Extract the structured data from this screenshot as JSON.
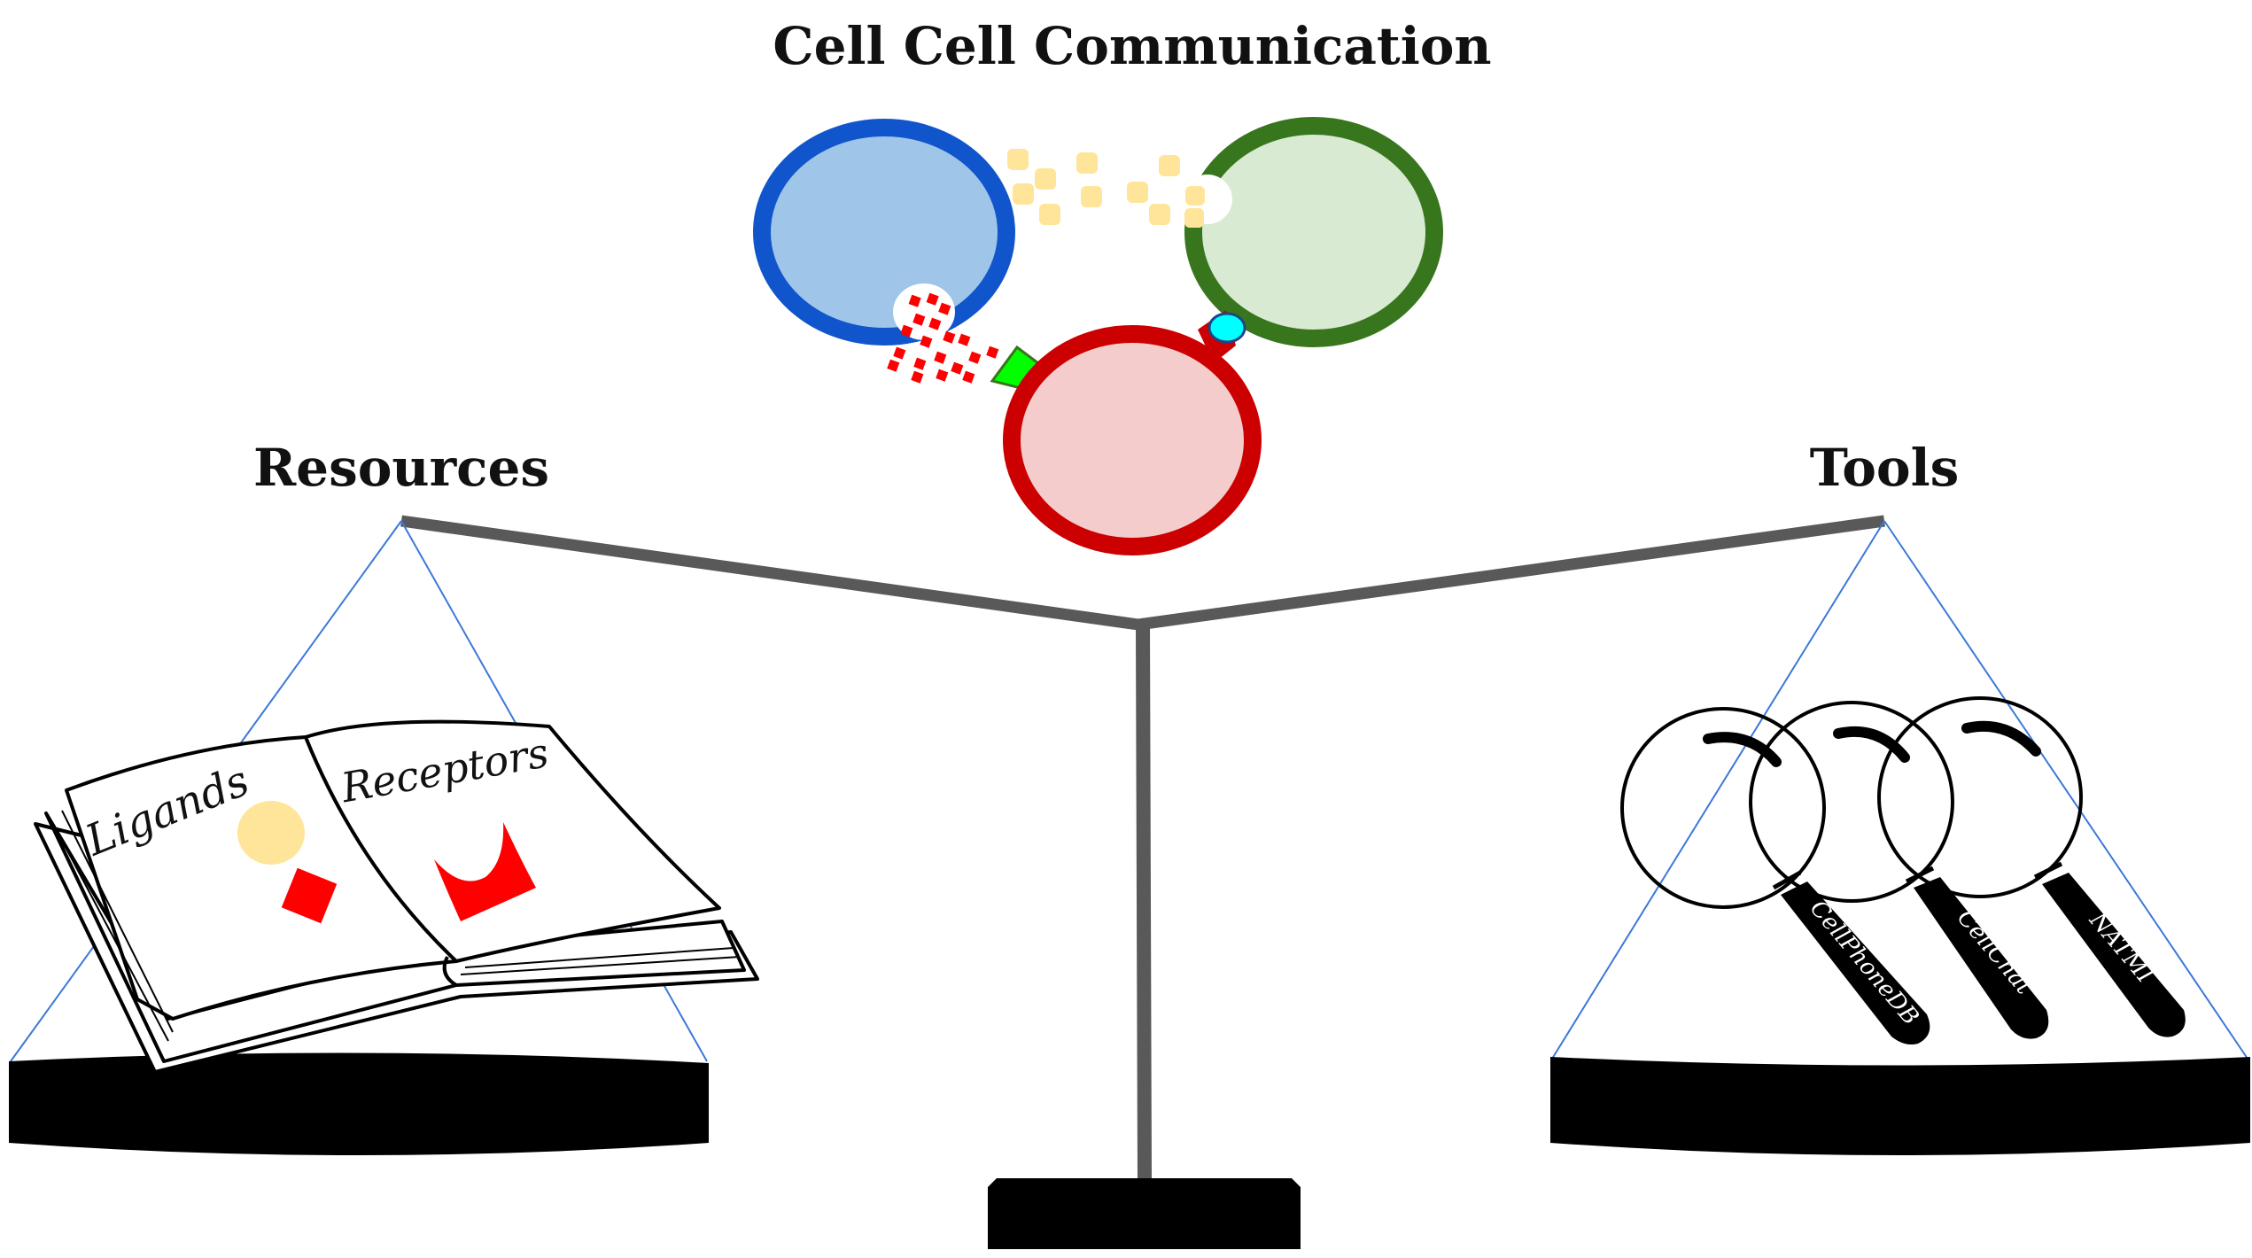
{
  "title": "Cell Cell Communication",
  "left_label": "Resources",
  "right_label": "Tools",
  "book": {
    "left_page": "Ligands",
    "right_page": "Receptors"
  },
  "tools": [
    "CellPhoneDB",
    "CellChat",
    "NATMI"
  ],
  "colors": {
    "cell_blue_border": "#1155cc",
    "cell_blue_fill": "#9fc5e8",
    "cell_green_border": "#38761d",
    "cell_green_fill": "#d9ead3",
    "cell_red_border": "#cc0000",
    "cell_red_fill": "#f4cccc",
    "ligand_yellow": "#ffe599",
    "ligand_red": "#ff0000",
    "receptor_green": "#00ff00",
    "receptor_cyan": "#00ffff",
    "beam": "#595959",
    "pan": "#000000",
    "string": "#3c78d8"
  }
}
